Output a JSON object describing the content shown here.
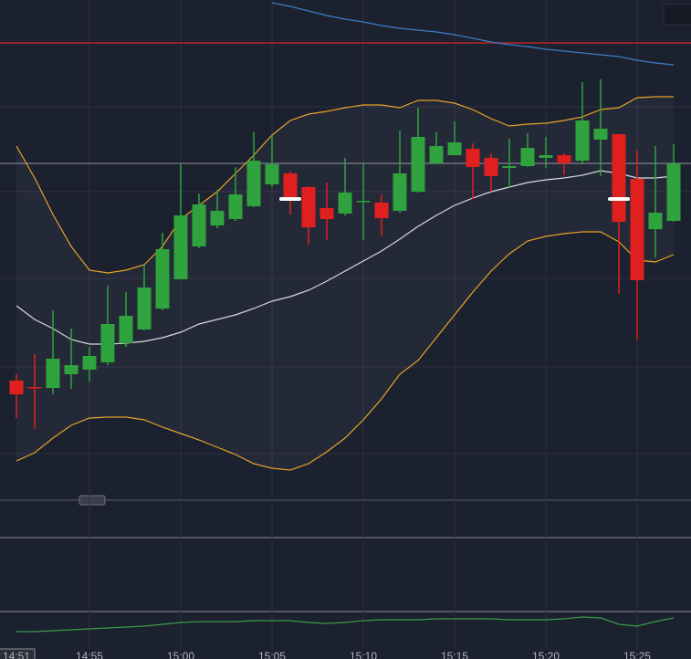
{
  "chart_data": {
    "type": "candlestick",
    "x": [
      51,
      52,
      53,
      54,
      55,
      56,
      57,
      58,
      59,
      60,
      61,
      62,
      63,
      64,
      65,
      66,
      67,
      68,
      69,
      70,
      71,
      72,
      73,
      74,
      75,
      76,
      77,
      78,
      79,
      80,
      81,
      82,
      83,
      84,
      85,
      86,
      87
    ],
    "xlim": [
      50.1,
      87.95
    ],
    "xticks": [
      {
        "value": 55,
        "label": "14:55"
      },
      {
        "value": 60,
        "label": "15:00"
      },
      {
        "value": 65,
        "label": "15:05"
      },
      {
        "value": 70,
        "label": "15:10"
      },
      {
        "value": 75,
        "label": "15:15"
      },
      {
        "value": 80,
        "label": "15:20"
      },
      {
        "value": 85,
        "label": "15:25"
      }
    ],
    "crosshair_label": {
      "value": 51,
      "label": "14:51"
    },
    "ylim": [
      0,
      722
    ],
    "grid": true,
    "up_color": "#2fa33d",
    "down_color": "#e0201f",
    "open": [
      305,
      298,
      297,
      312,
      317,
      325,
      346,
      361,
      384,
      416,
      452,
      475,
      482,
      496,
      520,
      532,
      517,
      494,
      488,
      501,
      500,
      491,
      512,
      543,
      552,
      559,
      549,
      538,
      540,
      549,
      552,
      546,
      569,
      575,
      526,
      471,
      480
    ],
    "close": [
      290,
      297,
      329,
      322,
      332,
      367,
      376,
      407,
      449,
      486,
      498,
      491,
      509,
      546,
      542,
      504,
      473,
      482,
      511,
      502,
      483,
      532,
      572,
      562,
      566,
      539,
      529,
      540,
      560,
      552,
      543,
      590,
      581,
      479,
      415,
      489,
      543
    ],
    "high": [
      312,
      334,
      382,
      362,
      342,
      409,
      402,
      432,
      467,
      542,
      510,
      514,
      539,
      577,
      574,
      534,
      518,
      522,
      549,
      542,
      509,
      579,
      604,
      577,
      589,
      565,
      554,
      570,
      576,
      572,
      554,
      632,
      635,
      575,
      557,
      562,
      564
    ],
    "low": [
      264,
      252,
      290,
      296,
      304,
      322,
      342,
      360,
      382,
      416,
      450,
      472,
      480,
      495,
      517,
      487,
      454,
      459,
      486,
      459,
      464,
      489,
      511,
      542,
      552,
      504,
      512,
      516,
      539,
      538,
      530,
      542,
      529,
      400,
      350,
      440,
      479
    ],
    "series": [
      {
        "color": "#e8a227",
        "values": [
          562,
          527,
          487,
          452,
          426,
          423,
          426,
          432,
          452,
          482,
          497,
          512,
          532,
          552,
          574,
          590,
          597,
          600,
          604,
          607,
          607,
          604,
          612,
          612,
          609,
          602,
          592,
          584,
          586,
          587,
          590,
          594,
          602,
          604,
          615,
          616,
          616
        ]
      },
      {
        "color": "#d9d9d9",
        "values": [
          387,
          372,
          362,
          350,
          345,
          345,
          346,
          348,
          352,
          358,
          367,
          372,
          377,
          384,
          392,
          397,
          404,
          414,
          425,
          436,
          447,
          460,
          474,
          486,
          497,
          505,
          512,
          517,
          522,
          525,
          527,
          530,
          535,
          532,
          527,
          527,
          529
        ]
      },
      {
        "color": "#e8a227",
        "values": [
          217,
          226,
          242,
          256,
          264,
          265,
          265,
          262,
          254,
          247,
          240,
          232,
          224,
          214,
          209,
          207,
          214,
          227,
          242,
          262,
          285,
          312,
          327,
          352,
          377,
          402,
          425,
          444,
          458,
          463,
          466,
          468,
          468,
          457,
          437,
          435,
          443
        ]
      },
      {
        "color": "#3d7fc4",
        "values": [
          null,
          null,
          null,
          null,
          null,
          null,
          null,
          null,
          null,
          null,
          null,
          null,
          null,
          null,
          719,
          715,
          710,
          705,
          701,
          698,
          694,
          691,
          689,
          687,
          684,
          680,
          676,
          673,
          671,
          668,
          666,
          664,
          662,
          660,
          656,
          653,
          651
        ]
      },
      {
        "color": "#3a9a48",
        "values": [
          30,
          30,
          31,
          32,
          33,
          34,
          35,
          36,
          38,
          40,
          41,
          41,
          41,
          42,
          42,
          42,
          40,
          39,
          40,
          42,
          43,
          43,
          43,
          44,
          44,
          44,
          44,
          43,
          43,
          43,
          44,
          46,
          45,
          38,
          36,
          41,
          45
        ]
      }
    ],
    "reference_lines": [
      {
        "value": 675,
        "color": "#b8262a"
      },
      {
        "value": 543,
        "color": "#6b6f7a"
      }
    ]
  }
}
